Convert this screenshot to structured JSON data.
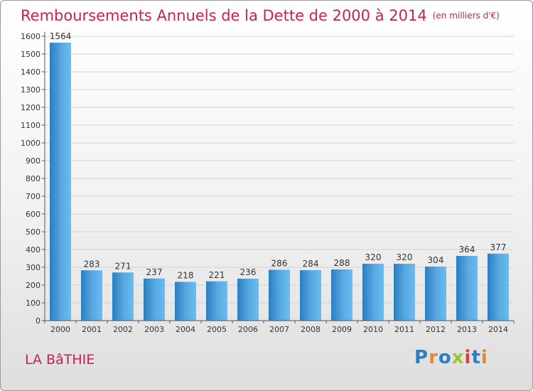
{
  "header": {
    "title": "Remboursements Annuels de la Dette de 2000 à 2014",
    "unit": "(en milliers d'€)"
  },
  "footer": {
    "commune": "LA BâTHIE",
    "brand": "Proxiti",
    "brand_colors": [
      "#2e7fc2",
      "#e8862a",
      "#2e7fc2",
      "#9bc43b",
      "#e23c3c",
      "#2e7fc2",
      "#e8862a"
    ]
  },
  "colors": {
    "accent": "#c8224f",
    "bar_light": "#5eb5ee",
    "bar_dark": "#2a7fc1",
    "grid": "#d2d2d2",
    "axis": "#555555"
  },
  "chart_data": {
    "type": "bar",
    "title": "Remboursements Annuels de la Dette de 2000 à 2014",
    "categories": [
      "2000",
      "2001",
      "2002",
      "2003",
      "2004",
      "2005",
      "2006",
      "2007",
      "2008",
      "2009",
      "2010",
      "2011",
      "2012",
      "2013",
      "2014"
    ],
    "values": [
      1564,
      283,
      271,
      237,
      218,
      221,
      236,
      286,
      284,
      288,
      320,
      320,
      304,
      364,
      377
    ],
    "ylim": [
      0,
      1600
    ],
    "yticks": [
      0,
      100,
      200,
      300,
      400,
      500,
      600,
      700,
      800,
      900,
      1000,
      1100,
      1200,
      1300,
      1400,
      1500,
      1600
    ],
    "grid": true,
    "data_labels": true,
    "legend": "none"
  }
}
